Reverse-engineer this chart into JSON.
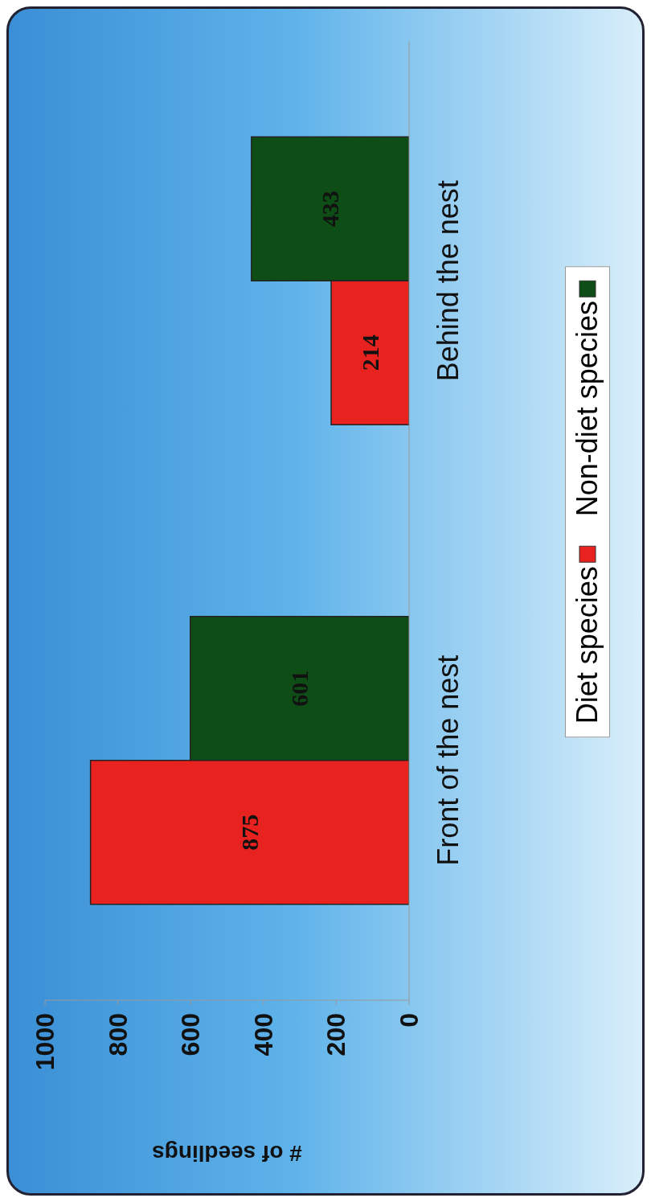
{
  "chart_data": {
    "type": "bar",
    "orientation": "horizontal",
    "xlabel": "# of seedlings",
    "categories": [
      "Behind the nest",
      "Front of the nest"
    ],
    "series": [
      {
        "name": "Diet species",
        "color": "#e8231f",
        "values": [
          214,
          875
        ]
      },
      {
        "name": "Non-diet species",
        "color": "#0f4d16",
        "values": [
          433,
          601
        ]
      }
    ],
    "xlim": [
      1000,
      0
    ],
    "xticks": [
      1000,
      800,
      600,
      400,
      200,
      0
    ],
    "legend": "right",
    "grid": false,
    "data_labels": true
  }
}
